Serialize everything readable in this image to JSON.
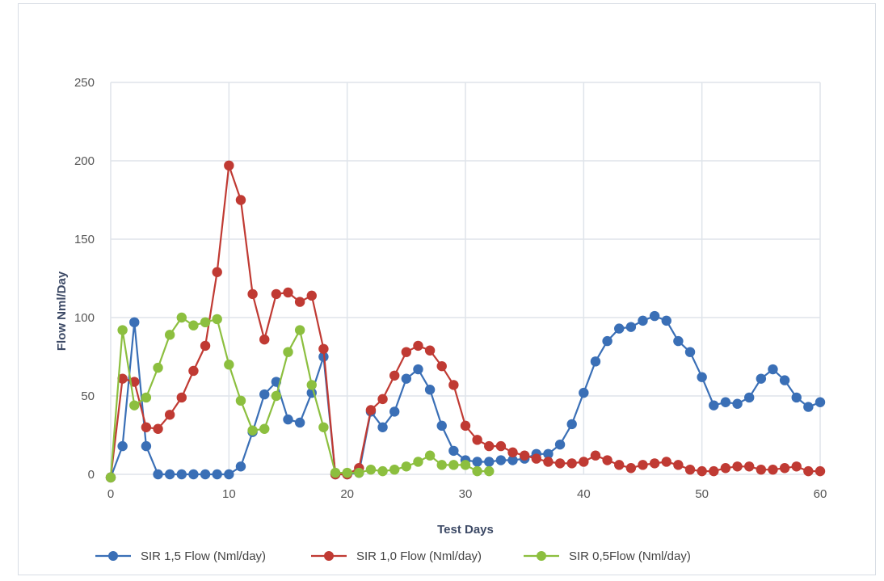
{
  "chart_data": {
    "type": "line",
    "xlabel": "Test Days",
    "ylabel": "Flow Nml/Day",
    "xlim": [
      0,
      60
    ],
    "ylim": [
      0,
      250
    ],
    "xticks": [
      0,
      10,
      20,
      30,
      40,
      50,
      60
    ],
    "yticks": [
      0,
      50,
      100,
      150,
      200,
      250
    ],
    "grid": true,
    "legend_position": "bottom",
    "series": [
      {
        "name": "SIR 1,5 Flow (Nml/day)",
        "color": "#3a6fb6",
        "x": [
          0,
          1,
          2,
          3,
          4,
          5,
          6,
          7,
          8,
          9,
          10,
          11,
          12,
          13,
          14,
          15,
          16,
          17,
          18,
          19,
          20,
          21,
          22,
          23,
          24,
          25,
          26,
          27,
          28,
          29,
          30,
          31,
          32,
          33,
          34,
          35,
          36,
          37,
          38,
          39,
          40,
          41,
          42,
          43,
          44,
          45,
          46,
          47,
          48,
          49,
          50,
          51,
          52,
          53,
          54,
          55,
          56,
          57,
          58,
          59,
          60
        ],
        "y": [
          -2,
          18,
          97,
          18,
          0,
          0,
          0,
          0,
          0,
          0,
          0,
          5,
          27,
          51,
          59,
          35,
          33,
          52,
          75,
          0,
          0,
          1,
          40,
          30,
          40,
          61,
          67,
          54,
          31,
          15,
          9,
          8,
          8,
          9,
          9,
          10,
          13,
          13,
          19,
          32,
          52,
          72,
          85,
          93,
          94,
          98,
          101,
          98,
          85,
          78,
          62,
          44,
          46,
          45,
          49,
          61,
          67,
          60,
          49,
          43,
          46
        ]
      },
      {
        "name": "SIR 1,0 Flow (Nml/day)",
        "color": "#c03a33",
        "x": [
          0,
          1,
          2,
          3,
          4,
          5,
          6,
          7,
          8,
          9,
          10,
          11,
          12,
          13,
          14,
          15,
          16,
          17,
          18,
          19,
          20,
          21,
          22,
          23,
          24,
          25,
          26,
          27,
          28,
          29,
          30,
          31,
          32,
          33,
          34,
          35,
          36,
          37,
          38,
          39,
          40,
          41,
          42,
          43,
          44,
          45,
          46,
          47,
          48,
          49,
          50,
          51,
          52,
          53,
          54,
          55,
          56,
          57,
          58,
          59,
          60
        ],
        "y": [
          -2,
          61,
          59,
          30,
          29,
          38,
          49,
          66,
          82,
          129,
          197,
          175,
          115,
          86,
          115,
          116,
          110,
          114,
          80,
          0,
          0,
          4,
          41,
          48,
          63,
          78,
          82,
          79,
          69,
          57,
          31,
          22,
          18,
          18,
          14,
          12,
          10,
          8,
          7,
          7,
          8,
          12,
          9,
          6,
          4,
          6,
          7,
          8,
          6,
          3,
          2,
          2,
          4,
          5,
          5,
          3,
          3,
          4,
          5,
          2,
          2
        ]
      },
      {
        "name": "SIR 0,5Flow (Nml/day)",
        "color": "#8cbf3f",
        "x": [
          0,
          1,
          2,
          3,
          4,
          5,
          6,
          7,
          8,
          9,
          10,
          11,
          12,
          13,
          14,
          15,
          16,
          17,
          18,
          19,
          20,
          21,
          22,
          23,
          24,
          25,
          26,
          27,
          28,
          29,
          30,
          31,
          32
        ],
        "y": [
          -2,
          92,
          44,
          49,
          68,
          89,
          100,
          95,
          97,
          99,
          70,
          47,
          28,
          29,
          50,
          78,
          92,
          57,
          30,
          1,
          1,
          1,
          3,
          2,
          3,
          5,
          8,
          12,
          6,
          6,
          6,
          2,
          2
        ]
      }
    ]
  }
}
